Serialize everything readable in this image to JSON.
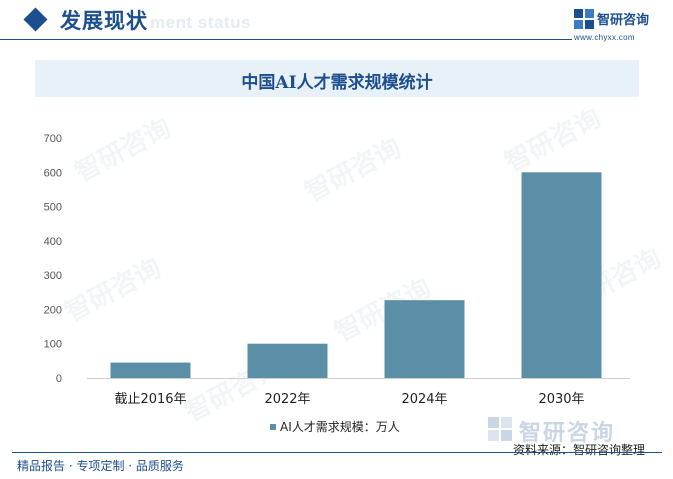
{
  "header": {
    "title": "发展现状",
    "subtitle_en": "ment status"
  },
  "logo": {
    "name": "智研咨询",
    "url": "www.chyxx.com"
  },
  "watermark_text": "智研咨询",
  "chart_data": {
    "type": "bar",
    "title": "中国AI人才需求规模统计",
    "categories": [
      "截止2016年",
      "2022年",
      "2024年",
      "2030年"
    ],
    "series": [
      {
        "name": "AI人才需求规模：万人",
        "values": [
          45,
          100,
          227,
          600
        ]
      }
    ],
    "ylim": [
      0,
      700
    ],
    "yticks": [
      "0",
      "100",
      "200",
      "300",
      "400",
      "500",
      "600",
      "700"
    ],
    "grid": false,
    "legend": "bottom-center",
    "colors": {
      "bar": "#5b8fa8"
    }
  },
  "footer": {
    "logo_text": "智研咨询",
    "source": "资料来源：智研咨询整理",
    "slogan": "精品报告 · 专项定制 · 品质服务"
  }
}
